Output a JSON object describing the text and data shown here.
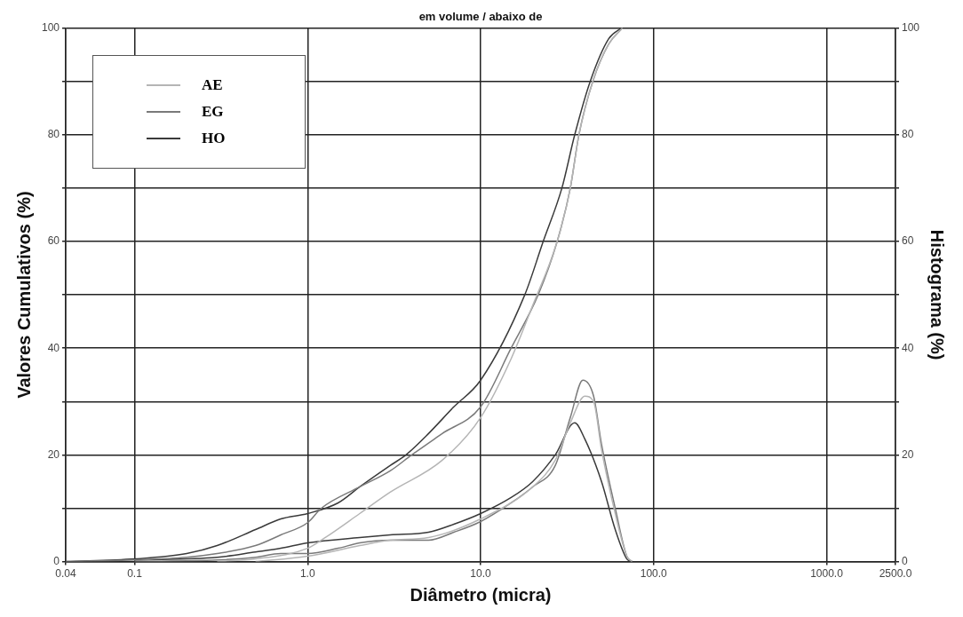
{
  "chart_data": {
    "type": "line",
    "title": "em volume / abaixo de",
    "xlabel": "Diâmetro (micra)",
    "ylabel": "Valores Cumulativos (%)",
    "y2label": "Histograma (%)",
    "log": "x",
    "xlim": [
      0.04,
      2500
    ],
    "xticks": [
      {
        "value": 0.04,
        "label": "0.04"
      },
      {
        "value": 0.1,
        "label": "0.1"
      },
      {
        "value": 1,
        "label": "1.0"
      },
      {
        "value": 10,
        "label": "10.0"
      },
      {
        "value": 100,
        "label": "100.0"
      },
      {
        "value": 1000,
        "label": "1000.0"
      },
      {
        "value": 2500,
        "label": "2500.0"
      }
    ],
    "ylim": [
      0,
      100
    ],
    "yticks": [
      0,
      {
        "value": 10,
        "label": null
      },
      20,
      {
        "value": 30,
        "label": null
      },
      40,
      {
        "value": 50,
        "label": null
      },
      60,
      {
        "value": 70,
        "label": null
      },
      80,
      {
        "value": 90,
        "label": null
      },
      100
    ],
    "y2lim": [
      0,
      100
    ],
    "y2ticks": [
      0,
      {
        "value": 10,
        "label": null
      },
      20,
      {
        "value": 30,
        "label": null
      },
      40,
      {
        "value": 50,
        "label": null
      },
      60,
      {
        "value": 70,
        "label": null
      },
      80,
      {
        "value": 90,
        "label": null
      },
      100
    ],
    "grid": true,
    "legend": "top left",
    "marker": "none",
    "line_style": "solid",
    "series": [
      {
        "name": "AE",
        "color": "#b5b5b5",
        "x": [
          0.3,
          0.5,
          1,
          1.25,
          2,
          3,
          6,
          10,
          15,
          20,
          27.7,
          33,
          37,
          44.5,
          55,
          66
        ],
        "values": [
          0,
          0.5,
          2.5,
          4.4,
          9,
          13,
          19,
          27,
          38,
          48,
          60,
          70,
          80,
          90,
          97,
          100
        ]
      },
      {
        "name": "EG",
        "color": "#7a7a7a",
        "x": [
          0.04,
          0.1,
          0.2,
          0.3,
          0.5,
          0.7,
          1,
          1.2,
          2,
          3,
          4,
          6,
          10,
          15,
          21.5,
          27.7,
          33,
          37,
          44.5,
          55,
          66
        ],
        "values": [
          0,
          0.3,
          0.8,
          1.5,
          3,
          5,
          7.3,
          10,
          14,
          17,
          20,
          24,
          29,
          40,
          50,
          60,
          70,
          80,
          90,
          97,
          100
        ]
      },
      {
        "name": "HO",
        "color": "#3a3a3a",
        "x": [
          0.04,
          0.1,
          0.2,
          0.3,
          0.5,
          0.7,
          1,
          1.5,
          2,
          3,
          3.7,
          5,
          7,
          10,
          18,
          23,
          29.5,
          35,
          43,
          55,
          65
        ],
        "values": [
          0,
          0.5,
          1.5,
          3,
          6,
          8,
          9,
          11,
          14,
          18,
          20,
          24,
          29,
          34,
          50,
          60,
          70,
          80,
          90,
          98,
          100
        ]
      },
      {
        "color": "#b5b5b5",
        "x": [
          0.5,
          1,
          2,
          3,
          5,
          10,
          20,
          27,
          33,
          40,
          45,
          50,
          60,
          70,
          75
        ],
        "values": [
          0,
          1,
          3,
          4,
          4.5,
          8,
          14,
          19,
          26,
          31,
          30,
          21,
          9,
          1,
          0
        ]
      },
      {
        "color": "#7a7a7a",
        "x": [
          0.1,
          0.3,
          0.5,
          0.7,
          1,
          1.5,
          2,
          3,
          5,
          7,
          10,
          15,
          20,
          27,
          33,
          39,
          45,
          50,
          60,
          70,
          75
        ],
        "values": [
          0,
          0.3,
          0.8,
          1.5,
          1.5,
          2.5,
          3.5,
          4,
          4,
          5.5,
          7.5,
          11,
          14,
          18,
          27,
          34,
          31,
          22,
          10,
          1,
          0
        ]
      },
      {
        "color": "#3a3a3a",
        "x": [
          0.1,
          0.3,
          0.5,
          0.7,
          1,
          2,
          3,
          5,
          7,
          10,
          15,
          20,
          27,
          35,
          40,
          50,
          60,
          70,
          75
        ],
        "values": [
          0.3,
          0.8,
          1.8,
          2.5,
          3.5,
          4.5,
          5,
          5.5,
          7,
          9,
          12,
          15,
          20,
          26,
          23,
          15,
          6,
          0.5,
          0
        ]
      }
    ]
  }
}
